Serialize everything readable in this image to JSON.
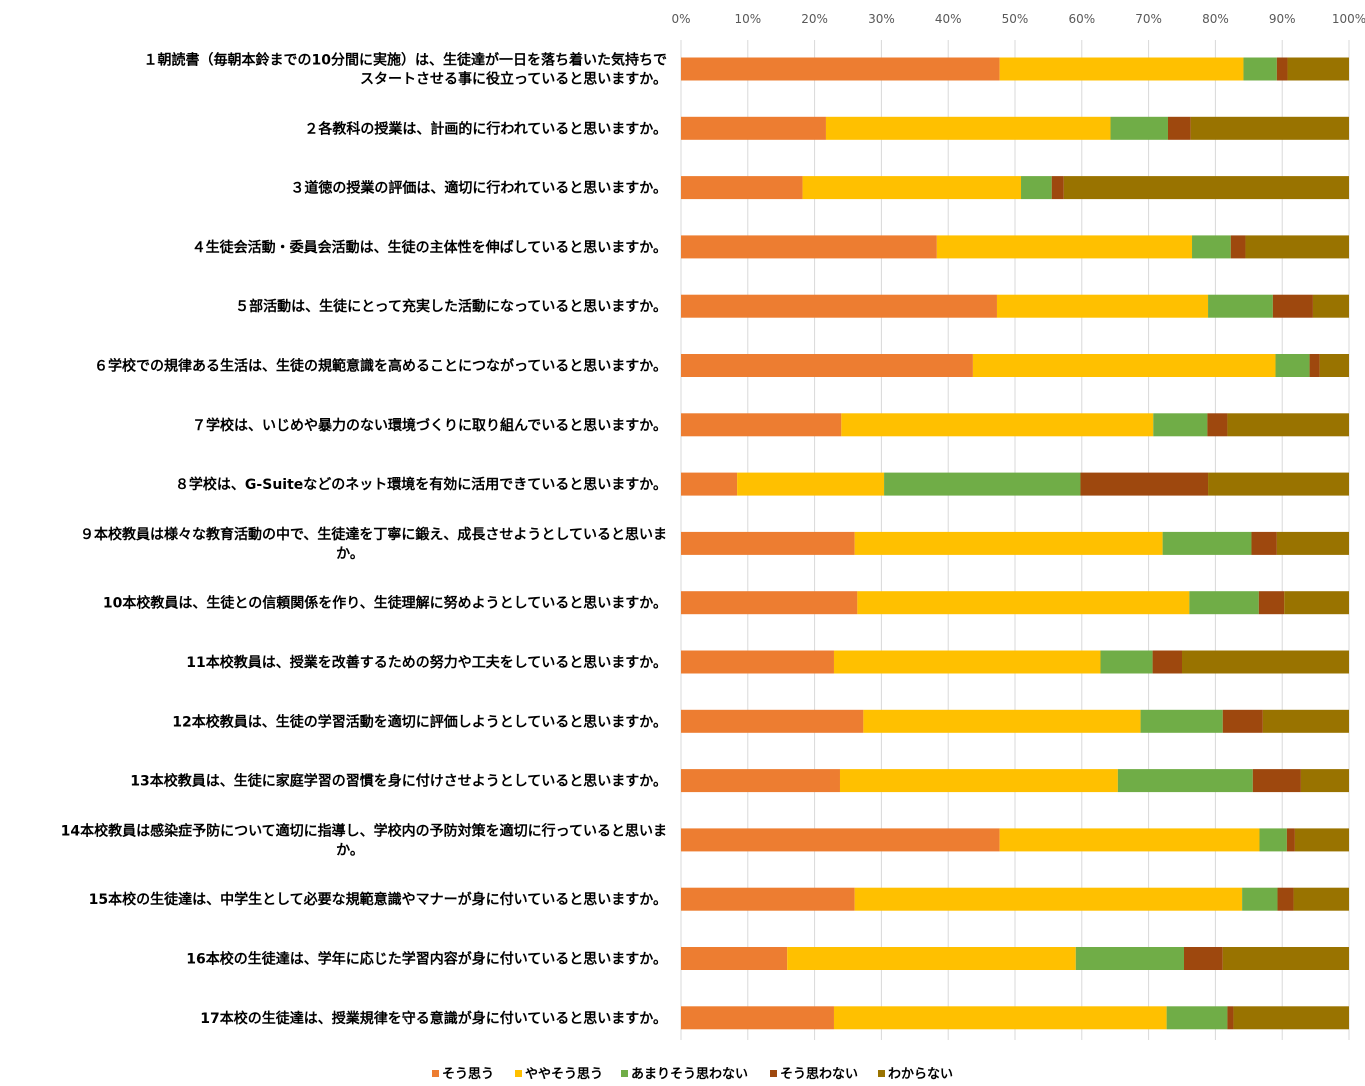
{
  "chart_data": {
    "type": "bar",
    "orientation": "horizontal",
    "stacked": true,
    "xlim": [
      0,
      100
    ],
    "xticks": [
      "0%",
      "10%",
      "20%",
      "30%",
      "40%",
      "50%",
      "60%",
      "70%",
      "80%",
      "90%",
      "100%"
    ],
    "grid": true,
    "legend_position": "bottom",
    "categories": [
      [
        "１朝読書（毎朝本鈴までの10分間に実施）は、生徒達が一日を落ち着いた気持ちで",
        "スタートさせる事に役立っていると思いますか。"
      ],
      [
        "２各教科の授業は、計画的に行われていると思いますか。"
      ],
      [
        "３道徳の授業の評価は、適切に行われていると思いますか。"
      ],
      [
        "４生徒会活動・委員会活動は、生徒の主体性を伸ばしていると思いますか。"
      ],
      [
        "５部活動は、生徒にとって充実した活動になっていると思いますか。"
      ],
      [
        "６学校での規律ある生活は、生徒の規範意識を高めることにつながっていると思いますか。"
      ],
      [
        "７学校は、いじめや暴力のない環境づくりに取り組んでいると思いますか。"
      ],
      [
        "８学校は、G-Suiteなどのネット環境を有効に活用できていると思いますか。"
      ],
      [
        "９本校教員は様々な教育活動の中で、生徒達を丁寧に鍛え、成長させようとしていると思いま",
        "か。"
      ],
      [
        "10本校教員は、生徒との信頼関係を作り、生徒理解に努めようとしていると思いますか。"
      ],
      [
        "11本校教員は、授業を改善するための努力や工夫をしていると思いますか。"
      ],
      [
        "12本校教員は、生徒の学習活動を適切に評価しようとしていると思いますか。"
      ],
      [
        "13本校教員は、生徒に家庭学習の習慣を身に付けさせようとしていると思いますか。"
      ],
      [
        "14本校教員は感染症予防について適切に指導し、学校内の予防対策を適切に行っていると思いま",
        "か。"
      ],
      [
        "15本校の生徒達は、中学生として必要な規範意識やマナーが身に付いていると思いますか。"
      ],
      [
        "16本校の生徒達は、学年に応じた学習内容が身に付いていると思いますか。"
      ],
      [
        "17本校の生徒達は、授業規律を守る意識が身に付いていると思いますか。"
      ]
    ],
    "series": [
      {
        "name": "そう思う",
        "color": "#ED7D31",
        "values": [
          47.7,
          21.7,
          18.2,
          38.3,
          47.3,
          43.7,
          24.0,
          8.4,
          26.0,
          26.4,
          22.9,
          27.3,
          23.8,
          47.7,
          26.0,
          15.9,
          22.9
        ]
      },
      {
        "name": "ややそう思う",
        "color": "#FFC000",
        "values": [
          36.5,
          42.6,
          32.7,
          38.2,
          31.6,
          45.3,
          46.7,
          22.0,
          46.1,
          49.7,
          39.9,
          41.5,
          41.6,
          38.9,
          58.0,
          43.2,
          49.8
        ]
      },
      {
        "name": "あまりそう思わない",
        "color": "#70AD47",
        "values": [
          5.0,
          8.6,
          4.6,
          5.8,
          9.7,
          5.1,
          8.1,
          29.4,
          13.3,
          10.4,
          7.8,
          12.3,
          20.2,
          4.1,
          5.3,
          16.2,
          9.1
        ]
      },
      {
        "name": "そう思わない",
        "color": "#9E480E",
        "values": [
          1.6,
          3.4,
          1.8,
          2.2,
          6.0,
          1.5,
          3.0,
          19.1,
          3.8,
          3.8,
          4.4,
          6.0,
          7.2,
          1.2,
          2.4,
          5.8,
          0.9
        ]
      },
      {
        "name": "わからない",
        "color": "#997300",
        "values": [
          9.2,
          23.7,
          42.7,
          15.5,
          5.4,
          4.4,
          18.2,
          21.1,
          10.8,
          9.7,
          25.0,
          12.9,
          7.2,
          8.1,
          8.3,
          18.9,
          17.3
        ]
      }
    ]
  }
}
